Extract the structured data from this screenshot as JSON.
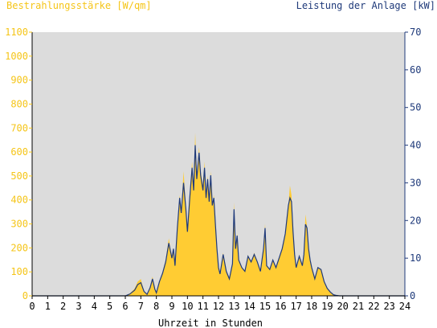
{
  "chart_data": {
    "type": "area",
    "left_axis_label": "Bestrahlungsstärke [W/qm]",
    "right_axis_label": "Leistung der Anlage [kW]",
    "xlabel": "Uhrzeit in Stunden",
    "xlim": [
      0,
      24
    ],
    "ylim_left": [
      0,
      1100
    ],
    "ylim_right": [
      0,
      70
    ],
    "x_ticks": [
      0,
      1,
      2,
      3,
      4,
      5,
      6,
      7,
      8,
      9,
      10,
      11,
      12,
      13,
      14,
      15,
      16,
      17,
      18,
      19,
      20,
      21,
      22,
      23,
      24
    ],
    "y_left_ticks": [
      0,
      100,
      200,
      300,
      400,
      500,
      600,
      700,
      800,
      900,
      1000,
      1100
    ],
    "y_right_ticks": [
      0,
      10,
      20,
      30,
      40,
      50,
      60,
      70
    ],
    "colors": {
      "irradiance": "#ffcc33",
      "power": "#1f3a7a",
      "plot_background": "#dcdcdc",
      "left_axis": "#f5c518",
      "right_axis": "#1f3a7a"
    },
    "series": [
      {
        "axis": "left",
        "style": "area",
        "x": [
          0,
          6.0,
          6.3,
          6.6,
          6.8,
          7.0,
          7.2,
          7.4,
          7.6,
          7.75,
          7.9,
          8.0,
          8.2,
          8.4,
          8.6,
          8.8,
          9.0,
          9.1,
          9.2,
          9.35,
          9.5,
          9.6,
          9.75,
          9.9,
          10.0,
          10.15,
          10.3,
          10.4,
          10.5,
          10.6,
          10.75,
          10.85,
          11.0,
          11.1,
          11.2,
          11.3,
          11.4,
          11.5,
          11.6,
          11.7,
          11.8,
          11.9,
          12.0,
          12.1,
          12.3,
          12.5,
          12.7,
          12.9,
          13.0,
          13.1,
          13.2,
          13.3,
          13.5,
          13.7,
          13.9,
          14.1,
          14.3,
          14.5,
          14.7,
          14.9,
          15.0,
          15.1,
          15.3,
          15.5,
          15.7,
          15.9,
          16.1,
          16.3,
          16.5,
          16.6,
          16.7,
          16.8,
          16.9,
          17.0,
          17.2,
          17.4,
          17.5,
          17.6,
          17.7,
          17.8,
          17.9,
          18.0,
          18.2,
          18.4,
          18.6,
          18.8,
          19.0,
          19.2,
          19.4,
          19.6,
          19.8,
          24
        ],
        "y": [
          0,
          0,
          10,
          30,
          60,
          70,
          20,
          5,
          40,
          80,
          30,
          10,
          60,
          100,
          150,
          240,
          160,
          200,
          130,
          300,
          420,
          350,
          520,
          380,
          280,
          420,
          560,
          450,
          680,
          500,
          620,
          520,
          460,
          560,
          420,
          500,
          400,
          520,
          380,
          420,
          300,
          200,
          120,
          90,
          180,
          100,
          70,
          140,
          390,
          200,
          260,
          150,
          120,
          100,
          170,
          140,
          180,
          140,
          100,
          200,
          300,
          130,
          110,
          150,
          120,
          160,
          200,
          260,
          380,
          460,
          420,
          280,
          180,
          120,
          170,
          130,
          180,
          340,
          290,
          200,
          150,
          120,
          70,
          120,
          110,
          60,
          30,
          15,
          5,
          2,
          0,
          0
        ]
      },
      {
        "axis": "right",
        "style": "line",
        "x": [
          0,
          6.0,
          6.3,
          6.6,
          6.8,
          7.0,
          7.2,
          7.4,
          7.6,
          7.75,
          7.9,
          8.0,
          8.2,
          8.4,
          8.6,
          8.8,
          9.0,
          9.1,
          9.2,
          9.35,
          9.5,
          9.6,
          9.75,
          9.9,
          10.0,
          10.15,
          10.3,
          10.4,
          10.5,
          10.6,
          10.75,
          10.85,
          11.0,
          11.1,
          11.2,
          11.3,
          11.4,
          11.5,
          11.6,
          11.7,
          11.8,
          11.9,
          12.0,
          12.1,
          12.3,
          12.5,
          12.7,
          12.9,
          13.0,
          13.1,
          13.2,
          13.3,
          13.5,
          13.7,
          13.9,
          14.1,
          14.3,
          14.5,
          14.7,
          14.9,
          15.0,
          15.1,
          15.3,
          15.5,
          15.7,
          15.9,
          16.1,
          16.3,
          16.5,
          16.6,
          16.7,
          16.8,
          16.9,
          17.0,
          17.2,
          17.4,
          17.5,
          17.6,
          17.7,
          17.8,
          17.9,
          18.0,
          18.2,
          18.4,
          18.6,
          18.8,
          19.0,
          19.2,
          19.4,
          19.6,
          19.8,
          24
        ],
        "y": [
          0,
          0,
          0.5,
          1.5,
          3,
          3.5,
          1.2,
          0.4,
          2.2,
          4.5,
          1.8,
          0.8,
          3.8,
          6,
          9,
          14,
          10,
          12.5,
          8,
          18,
          26,
          22,
          30,
          23,
          17,
          26,
          34,
          28,
          40,
          31,
          38,
          32,
          28,
          34,
          26,
          31,
          25,
          32,
          24,
          26,
          19,
          12.5,
          7.5,
          5.8,
          11,
          6.5,
          4.5,
          8.5,
          23,
          12.5,
          16,
          9.5,
          7.5,
          6.5,
          10.5,
          9,
          11,
          9,
          6.5,
          12.5,
          18,
          8,
          7,
          9.5,
          7.5,
          10,
          12.5,
          16.5,
          24,
          26,
          25,
          17,
          11,
          7.5,
          10.5,
          8,
          11,
          19,
          18,
          12.5,
          9.5,
          7.5,
          4.5,
          7.5,
          7,
          3.8,
          2,
          1,
          0.3,
          0.1,
          0,
          0
        ]
      }
    ],
    "grid": false
  }
}
